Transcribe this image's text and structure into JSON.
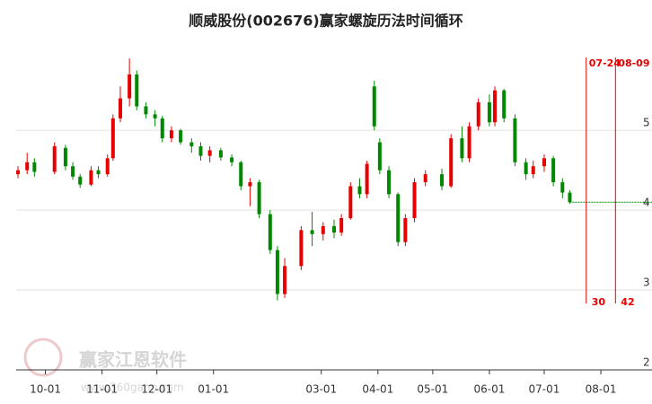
{
  "chart_data": {
    "type": "candlestick",
    "title": "顺威股份(002676)赢家螺旋历法时间循环",
    "up_color": "#e60000",
    "down_color": "#008800",
    "x": [
      "09-16",
      "09-21",
      "09-25",
      "10-06",
      "10-12",
      "10-16",
      "10-20",
      "10-26",
      "10-30",
      "11-04",
      "11-07",
      "11-11",
      "11-16",
      "11-20",
      "11-25",
      "11-30",
      "12-04",
      "12-09",
      "12-14",
      "12-20",
      "12-25",
      "12-30",
      "01-05",
      "01-11",
      "01-16",
      "01-21",
      "01-26",
      "02-01",
      "02-05",
      "02-09",
      "02-18",
      "02-24",
      "03-02",
      "03-08",
      "03-12",
      "03-17",
      "03-22",
      "03-26",
      "03-30",
      "04-02",
      "04-07",
      "04-12",
      "04-16",
      "04-21",
      "04-27",
      "05-06",
      "05-11",
      "05-17",
      "05-21",
      "05-26",
      "06-01",
      "06-04",
      "06-09",
      "06-15",
      "06-21",
      "06-25",
      "07-01",
      "07-06",
      "07-11",
      "07-15"
    ],
    "open": [
      4.45,
      4.5,
      4.6,
      4.48,
      4.78,
      4.55,
      4.42,
      4.32,
      4.5,
      4.45,
      4.65,
      5.15,
      5.4,
      5.7,
      5.3,
      5.2,
      5.15,
      4.9,
      5.0,
      4.85,
      4.8,
      4.68,
      4.75,
      4.66,
      4.6,
      4.3,
      4.35,
      3.95,
      3.5,
      2.95,
      3.3,
      3.75,
      3.7,
      3.8,
      3.72,
      3.9,
      4.3,
      4.2,
      5.55,
      4.85,
      4.5,
      4.2,
      3.6,
      3.9,
      4.35,
      4.45,
      4.3,
      4.9,
      4.65,
      5.05,
      5.35,
      5.1,
      5.5,
      5.15,
      4.6,
      4.45,
      4.55,
      4.65,
      4.35,
      4.22
    ],
    "high": [
      4.55,
      4.72,
      4.65,
      4.85,
      4.82,
      4.6,
      4.45,
      4.55,
      4.55,
      4.7,
      5.2,
      5.55,
      5.9,
      5.75,
      5.35,
      5.25,
      5.18,
      5.05,
      5.02,
      4.9,
      4.85,
      4.8,
      4.78,
      4.7,
      4.62,
      4.4,
      4.38,
      4.0,
      3.55,
      3.4,
      3.8,
      3.98,
      3.85,
      3.88,
      3.95,
      4.35,
      4.4,
      4.62,
      5.62,
      4.9,
      4.55,
      4.22,
      3.95,
      4.4,
      4.5,
      4.52,
      4.95,
      5.05,
      5.1,
      5.4,
      5.45,
      5.55,
      5.52,
      5.2,
      4.65,
      4.62,
      4.7,
      4.68,
      4.4,
      4.25
    ],
    "low": [
      4.4,
      4.45,
      4.42,
      4.45,
      4.5,
      4.38,
      4.28,
      4.3,
      4.4,
      4.42,
      4.62,
      5.1,
      5.3,
      5.25,
      5.15,
      5.05,
      4.85,
      4.85,
      4.82,
      4.72,
      4.62,
      4.6,
      4.62,
      4.55,
      4.25,
      4.05,
      3.9,
      3.45,
      2.87,
      2.9,
      3.25,
      3.55,
      3.62,
      3.65,
      3.68,
      3.88,
      4.15,
      4.15,
      5.0,
      4.45,
      4.15,
      3.55,
      3.55,
      3.85,
      4.3,
      4.25,
      4.28,
      4.6,
      4.6,
      5.0,
      5.05,
      5.05,
      5.1,
      4.55,
      4.38,
      4.4,
      4.48,
      4.3,
      4.15,
      4.08
    ],
    "close": [
      4.5,
      4.6,
      4.48,
      4.8,
      4.55,
      4.42,
      4.32,
      4.5,
      4.45,
      4.65,
      5.15,
      5.4,
      5.7,
      5.3,
      5.2,
      5.15,
      4.9,
      5.0,
      4.85,
      4.8,
      4.68,
      4.75,
      4.66,
      4.6,
      4.3,
      4.35,
      3.95,
      3.5,
      2.95,
      3.3,
      3.75,
      3.7,
      3.8,
      3.72,
      3.9,
      4.3,
      4.2,
      4.58,
      5.05,
      4.5,
      4.2,
      3.6,
      3.9,
      4.35,
      4.45,
      4.3,
      4.9,
      4.65,
      5.05,
      5.35,
      5.1,
      5.5,
      5.15,
      4.6,
      4.45,
      4.55,
      4.65,
      4.35,
      4.22,
      4.1
    ],
    "xlim": [
      "09-15",
      "08-29"
    ],
    "xticks": [
      "10-01",
      "11-01",
      "12-01",
      "01-01",
      "03-01",
      "04-01",
      "05-01",
      "06-01",
      "07-01",
      "08-01"
    ],
    "ylim": [
      2,
      6.07
    ],
    "yticks": [
      2,
      3,
      4,
      5
    ],
    "grid": true,
    "cycle_lines": [
      {
        "date": "07-24",
        "count": 30
      },
      {
        "date": "08-09",
        "count": 42
      }
    ],
    "cycle_color": "#e60000",
    "watermark": {
      "name": "赢家江恩软件",
      "url": "www.360gann.com"
    }
  }
}
